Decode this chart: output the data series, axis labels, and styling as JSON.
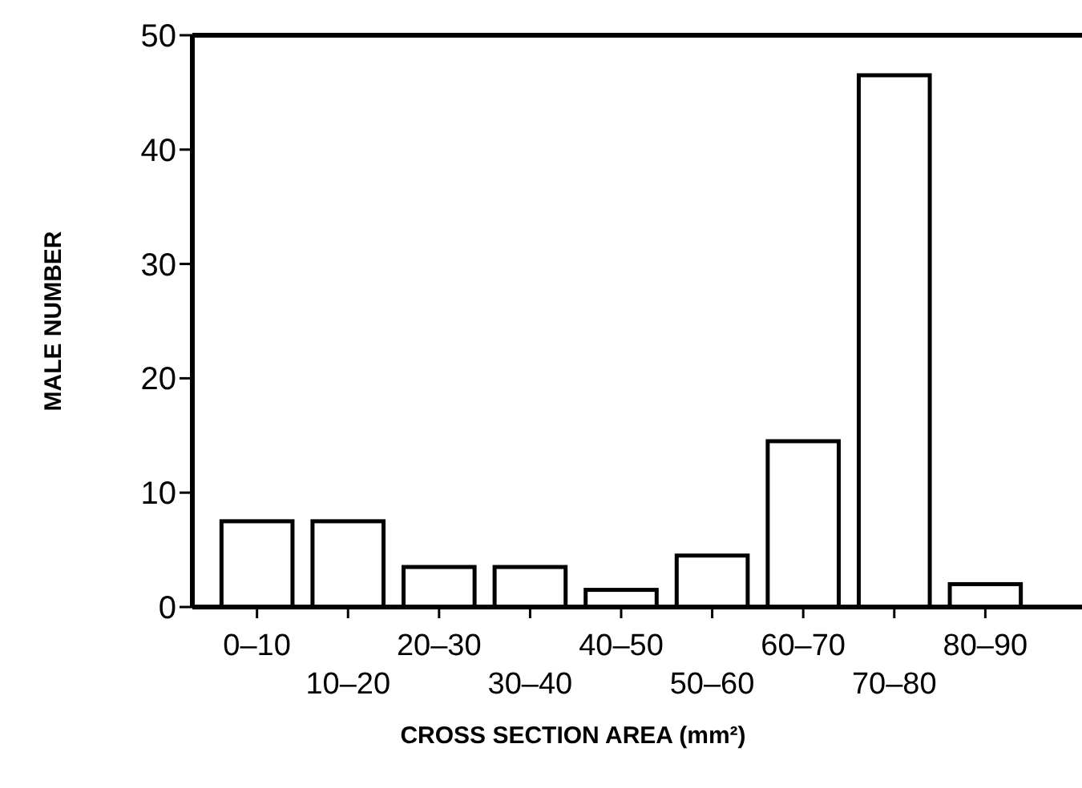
{
  "chart_data": {
    "type": "bar",
    "xlabel": "CROSS SECTION AREA  (mm²)",
    "ylabel": "MALE NUMBER",
    "categories": [
      "0–10",
      "10–20",
      "20–30",
      "30–40",
      "40–50",
      "50–60",
      "60–70",
      "70–80",
      "80–90"
    ],
    "values": [
      7.5,
      7.5,
      3.5,
      3.5,
      1.5,
      4.5,
      14.5,
      46.5,
      2
    ],
    "color": "#ffffff",
    "ylim": [
      0,
      50
    ],
    "yticks": [
      0,
      10,
      20,
      30,
      40,
      50
    ],
    "grid": false
  }
}
